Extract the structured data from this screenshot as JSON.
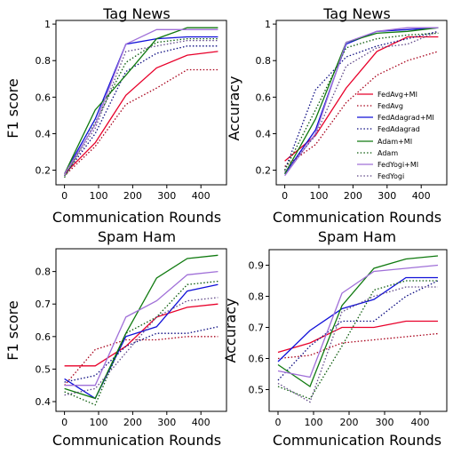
{
  "legend": [
    {
      "name": "FedAvg+MI",
      "color": "#e8002a",
      "dash": "solid"
    },
    {
      "name": "FedAvg",
      "color": "#a8001a",
      "dash": "dotted"
    },
    {
      "name": "FedAdagrad+MI",
      "color": "#1010d8",
      "dash": "solid"
    },
    {
      "name": "FedAdagrad",
      "color": "#0a0a80",
      "dash": "dotted"
    },
    {
      "name": "Adam+MI",
      "color": "#107a10",
      "dash": "solid"
    },
    {
      "name": "Adam",
      "color": "#0a5a0a",
      "dash": "dotted"
    },
    {
      "name": "FedYogi+MI",
      "color": "#a070d8",
      "dash": "solid"
    },
    {
      "name": "FedYogi",
      "color": "#604888",
      "dash": "dotted"
    }
  ],
  "chart_data": [
    {
      "type": "line",
      "title": "Tag News",
      "xlabel": "Communication Rounds",
      "ylabel": "F1 score",
      "xlim": [
        -25,
        475
      ],
      "ylim": [
        0.12,
        1.02
      ],
      "xticks": [
        0,
        100,
        200,
        300,
        400
      ],
      "yticks": [
        0.2,
        0.4,
        0.6,
        0.8,
        1.0
      ],
      "x": [
        0,
        90,
        180,
        270,
        360,
        450
      ],
      "series": [
        {
          "name": "FedAvg+MI",
          "values": [
            0.18,
            0.35,
            0.61,
            0.76,
            0.83,
            0.85
          ]
        },
        {
          "name": "FedAvg",
          "values": [
            0.17,
            0.33,
            0.56,
            0.65,
            0.75,
            0.75
          ]
        },
        {
          "name": "FedAdagrad+MI",
          "values": [
            0.18,
            0.48,
            0.89,
            0.92,
            0.93,
            0.93
          ]
        },
        {
          "name": "FedAdagrad",
          "values": [
            0.17,
            0.4,
            0.74,
            0.84,
            0.88,
            0.88
          ]
        },
        {
          "name": "Adam+MI",
          "values": [
            0.18,
            0.53,
            0.72,
            0.92,
            0.98,
            0.98
          ]
        },
        {
          "name": "Adam",
          "values": [
            0.16,
            0.46,
            0.79,
            0.9,
            0.92,
            0.92
          ]
        },
        {
          "name": "FedYogi+MI",
          "values": [
            0.18,
            0.45,
            0.89,
            0.97,
            0.97,
            0.97
          ]
        },
        {
          "name": "FedYogi",
          "values": [
            0.17,
            0.43,
            0.85,
            0.88,
            0.91,
            0.91
          ]
        }
      ]
    },
    {
      "type": "line",
      "title": "Tag News",
      "xlabel": "Communication Rounds",
      "ylabel": "Accuracy",
      "xlim": [
        -25,
        475
      ],
      "ylim": [
        0.12,
        1.02
      ],
      "xticks": [
        0,
        100,
        200,
        300,
        400
      ],
      "yticks": [
        0.2,
        0.4,
        0.6,
        0.8,
        1.0
      ],
      "x": [
        0,
        90,
        180,
        270,
        360,
        450
      ],
      "series": [
        {
          "name": "FedAvg+MI",
          "values": [
            0.25,
            0.39,
            0.65,
            0.85,
            0.93,
            0.93
          ]
        },
        {
          "name": "FedAvg",
          "values": [
            0.22,
            0.34,
            0.57,
            0.72,
            0.8,
            0.85
          ]
        },
        {
          "name": "FedAdagrad+MI",
          "values": [
            0.18,
            0.42,
            0.89,
            0.96,
            0.97,
            0.98
          ]
        },
        {
          "name": "FedAdagrad",
          "values": [
            0.2,
            0.64,
            0.82,
            0.88,
            0.92,
            0.96
          ]
        },
        {
          "name": "Adam+MI",
          "values": [
            0.18,
            0.48,
            0.9,
            0.95,
            0.96,
            0.98
          ]
        },
        {
          "name": "Adam",
          "values": [
            0.2,
            0.53,
            0.87,
            0.92,
            0.94,
            0.95
          ]
        },
        {
          "name": "FedYogi+MI",
          "values": [
            0.17,
            0.4,
            0.9,
            0.96,
            0.98,
            0.98
          ]
        },
        {
          "name": "FedYogi",
          "values": [
            0.19,
            0.39,
            0.77,
            0.87,
            0.89,
            0.96
          ]
        }
      ]
    },
    {
      "type": "line",
      "title": "Spam Ham",
      "xlabel": "Communication Rounds",
      "ylabel": "F1 score",
      "xlim": [
        -25,
        475
      ],
      "ylim": [
        0.37,
        0.87
      ],
      "xticks": [
        0,
        100,
        200,
        300,
        400
      ],
      "yticks": [
        0.4,
        0.5,
        0.6,
        0.7,
        0.8
      ],
      "x": [
        0,
        90,
        180,
        270,
        360,
        450
      ],
      "series": [
        {
          "name": "FedAvg+MI",
          "values": [
            0.51,
            0.51,
            0.57,
            0.66,
            0.69,
            0.7
          ]
        },
        {
          "name": "FedAvg",
          "values": [
            0.45,
            0.56,
            0.59,
            0.59,
            0.6,
            0.6
          ]
        },
        {
          "name": "FedAdagrad+MI",
          "values": [
            0.47,
            0.41,
            0.6,
            0.63,
            0.74,
            0.76
          ]
        },
        {
          "name": "FedAdagrad",
          "values": [
            0.46,
            0.48,
            0.57,
            0.61,
            0.61,
            0.63
          ]
        },
        {
          "name": "Adam+MI",
          "values": [
            0.44,
            0.41,
            0.61,
            0.78,
            0.84,
            0.85
          ]
        },
        {
          "name": "Adam",
          "values": [
            0.43,
            0.39,
            0.61,
            0.66,
            0.76,
            0.77
          ]
        },
        {
          "name": "FedYogi+MI",
          "values": [
            0.45,
            0.45,
            0.66,
            0.71,
            0.79,
            0.8
          ]
        },
        {
          "name": "FedYogi",
          "values": [
            0.42,
            0.44,
            0.55,
            0.66,
            0.71,
            0.72
          ]
        }
      ]
    },
    {
      "type": "line",
      "title": "Spam Ham",
      "xlabel": "Communication Rounds",
      "ylabel": "Accuracy",
      "xlim": [
        -25,
        475
      ],
      "ylim": [
        0.43,
        0.95
      ],
      "xticks": [
        0,
        100,
        200,
        300,
        400
      ],
      "yticks": [
        0.5,
        0.6,
        0.7,
        0.8,
        0.9
      ],
      "x": [
        0,
        90,
        180,
        270,
        360,
        450
      ],
      "series": [
        {
          "name": "FedAvg+MI",
          "values": [
            0.62,
            0.65,
            0.7,
            0.7,
            0.72,
            0.72
          ]
        },
        {
          "name": "FedAvg",
          "values": [
            0.6,
            0.61,
            0.65,
            0.66,
            0.67,
            0.68
          ]
        },
        {
          "name": "FedAdagrad+MI",
          "values": [
            0.59,
            0.69,
            0.76,
            0.79,
            0.86,
            0.86
          ]
        },
        {
          "name": "FedAdagrad",
          "values": [
            0.53,
            0.64,
            0.72,
            0.72,
            0.8,
            0.85
          ]
        },
        {
          "name": "Adam+MI",
          "values": [
            0.58,
            0.51,
            0.77,
            0.89,
            0.92,
            0.93
          ]
        },
        {
          "name": "Adam",
          "values": [
            0.51,
            0.47,
            0.64,
            0.82,
            0.85,
            0.85
          ]
        },
        {
          "name": "FedYogi+MI",
          "values": [
            0.56,
            0.54,
            0.81,
            0.88,
            0.89,
            0.9
          ]
        },
        {
          "name": "FedYogi",
          "values": [
            0.52,
            0.46,
            0.75,
            0.8,
            0.83,
            0.83
          ]
        }
      ]
    }
  ]
}
